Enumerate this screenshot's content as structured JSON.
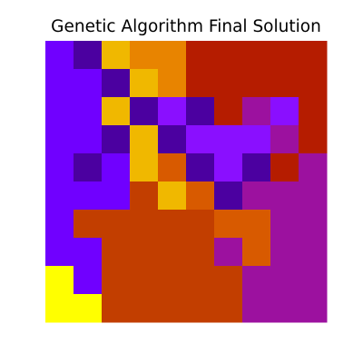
{
  "chart_data": {
    "type": "heatmap",
    "title": "Genetic Algorithm Final Solution",
    "xlabel": "",
    "ylabel": "",
    "axes_visible": false,
    "grid": false,
    "legend": "none",
    "rows": 10,
    "cols": 10,
    "palette": {
      "0": "#7000ff",
      "1": "#4b00a0",
      "2": "#f0b800",
      "3": "#e88400",
      "4": "#b51c00",
      "5": "#8a0fff",
      "6": "#9c119f",
      "7": "#d85a00",
      "8": "#c23e00",
      "9": "#ffff00"
    },
    "values": [
      [
        0,
        1,
        2,
        3,
        3,
        4,
        4,
        4,
        4,
        4
      ],
      [
        0,
        0,
        1,
        2,
        3,
        4,
        4,
        4,
        4,
        4
      ],
      [
        0,
        0,
        2,
        1,
        5,
        1,
        4,
        6,
        5,
        4
      ],
      [
        0,
        0,
        1,
        2,
        1,
        5,
        5,
        5,
        6,
        4
      ],
      [
        0,
        1,
        0,
        2,
        7,
        1,
        5,
        1,
        4,
        6
      ],
      [
        0,
        0,
        0,
        8,
        2,
        7,
        1,
        6,
        6,
        6
      ],
      [
        0,
        8,
        8,
        8,
        8,
        8,
        7,
        7,
        6,
        6
      ],
      [
        0,
        0,
        8,
        8,
        8,
        8,
        6,
        7,
        6,
        6
      ],
      [
        9,
        0,
        8,
        8,
        8,
        8,
        8,
        6,
        6,
        6
      ],
      [
        9,
        9,
        8,
        8,
        8,
        8,
        8,
        6,
        6,
        6
      ]
    ]
  }
}
